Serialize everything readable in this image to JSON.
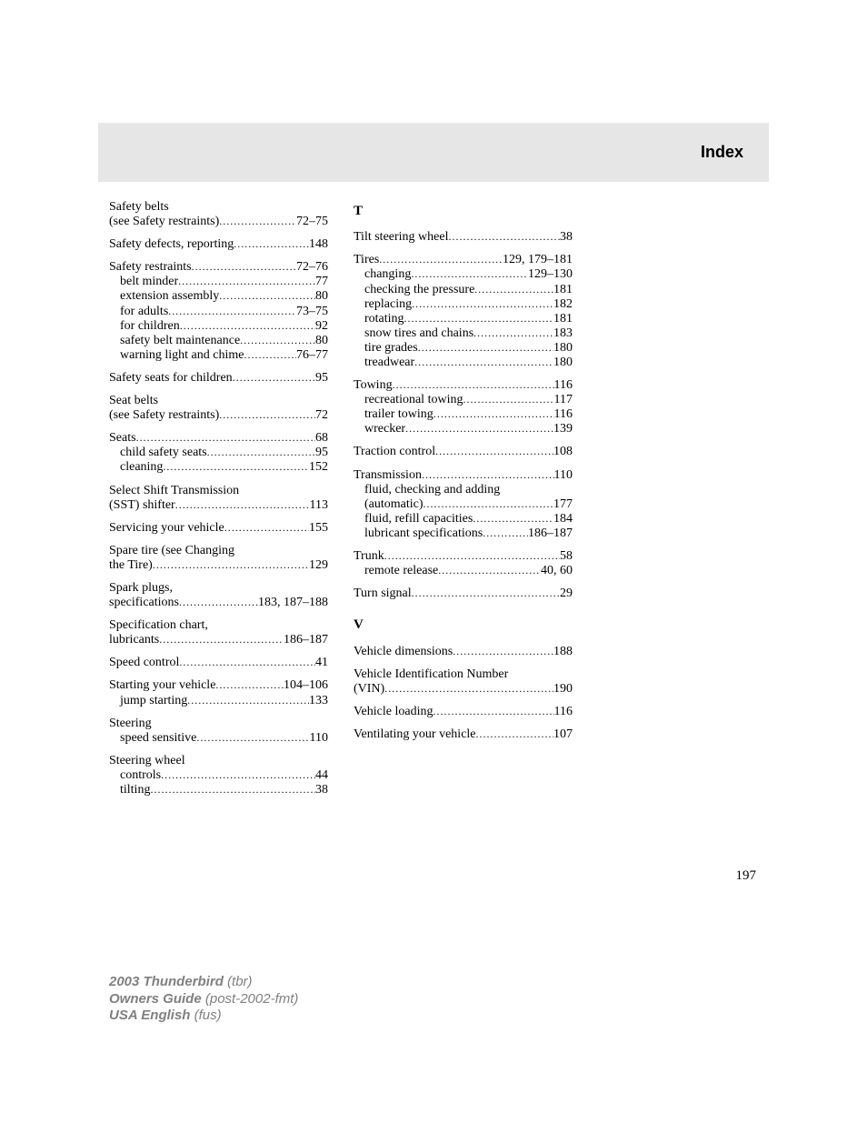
{
  "header": {
    "title": "Index"
  },
  "pageNumber": "197",
  "footer": {
    "line1a": "2003 Thunderbird ",
    "line1b": "(tbr)",
    "line2a": "Owners Guide ",
    "line2b": "(post-2002-fmt)",
    "line3a": "USA English ",
    "line3b": "(fus)"
  },
  "left": [
    {
      "label": "Safety belts",
      "nopage": true,
      "subs": [
        {
          "label": "(see Safety restraints)",
          "pg": "72–75",
          "noindent": true
        }
      ]
    },
    {
      "label": "Safety defects, reporting",
      "pg": "148"
    },
    {
      "label": "Safety restraints",
      "pg": "72–76",
      "subs": [
        {
          "label": "belt minder",
          "pg": "77"
        },
        {
          "label": "extension assembly",
          "pg": "80"
        },
        {
          "label": "for adults",
          "pg": "73–75"
        },
        {
          "label": "for children",
          "pg": "92"
        },
        {
          "label": "safety belt maintenance",
          "pg": "80"
        },
        {
          "label": "warning light and chime",
          "pg": "76–77"
        }
      ]
    },
    {
      "label": "Safety seats for children",
      "pg": "95"
    },
    {
      "label": "Seat belts",
      "nopage": true,
      "subs": [
        {
          "label": "(see Safety restraints)",
          "pg": "72",
          "noindent": true
        }
      ]
    },
    {
      "label": "Seats",
      "pg": "68",
      "subs": [
        {
          "label": "child safety seats",
          "pg": "95"
        },
        {
          "label": "cleaning",
          "pg": "152"
        }
      ]
    },
    {
      "label": "Select Shift Transmission",
      "nopage": true,
      "subs": [
        {
          "label": "(SST) shifter",
          "pg": "113",
          "noindent": true
        }
      ]
    },
    {
      "label": "Servicing your vehicle",
      "pg": "155"
    },
    {
      "label": "Spare tire (see Changing",
      "nopage": true,
      "subs": [
        {
          "label": "the Tire)",
          "pg": "129",
          "noindent": true
        }
      ]
    },
    {
      "label": "Spark plugs,",
      "nopage": true,
      "subs": [
        {
          "label": "specifications",
          "pg": "183, 187–188",
          "noindent": true
        }
      ]
    },
    {
      "label": "Specification chart,",
      "nopage": true,
      "subs": [
        {
          "label": "lubricants",
          "pg": "186–187",
          "noindent": true
        }
      ]
    },
    {
      "label": "Speed control",
      "pg": "41"
    },
    {
      "label": "Starting your vehicle",
      "pg": "104–106",
      "subs": [
        {
          "label": "jump starting",
          "pg": "133"
        }
      ]
    },
    {
      "label": "Steering",
      "nopage": true,
      "subs": [
        {
          "label": "speed sensitive",
          "pg": "110"
        }
      ]
    },
    {
      "label": "Steering wheel",
      "nopage": true,
      "subs": [
        {
          "label": "controls",
          "pg": "44"
        },
        {
          "label": "tilting",
          "pg": "38"
        }
      ]
    }
  ],
  "sectionT": "T",
  "sectionV": "V",
  "rightT": [
    {
      "label": "Tilt steering wheel",
      "pg": "38"
    },
    {
      "label": "Tires",
      "pg": "129, 179–181",
      "subs": [
        {
          "label": "changing",
          "pg": "129–130"
        },
        {
          "label": "checking the pressure",
          "pg": "181"
        },
        {
          "label": "replacing",
          "pg": "182"
        },
        {
          "label": "rotating",
          "pg": "181"
        },
        {
          "label": "snow tires and chains",
          "pg": "183"
        },
        {
          "label": "tire grades",
          "pg": "180"
        },
        {
          "label": "treadwear",
          "pg": "180"
        }
      ]
    },
    {
      "label": "Towing",
      "pg": "116",
      "subs": [
        {
          "label": "recreational towing",
          "pg": "117"
        },
        {
          "label": "trailer towing",
          "pg": "116"
        },
        {
          "label": "wrecker",
          "pg": "139"
        }
      ]
    },
    {
      "label": "Traction control",
      "pg": "108"
    },
    {
      "label": "Transmission",
      "pg": "110",
      "subs": [
        {
          "label": "fluid, checking and adding",
          "nopage": true
        },
        {
          "label": "(automatic)",
          "pg": "177"
        },
        {
          "label": "fluid, refill capacities",
          "pg": "184"
        },
        {
          "label": "lubricant specifications",
          "pg": "186–187"
        }
      ]
    },
    {
      "label": "Trunk",
      "pg": "58",
      "subs": [
        {
          "label": "remote release",
          "pg": "40, 60"
        }
      ]
    },
    {
      "label": "Turn signal",
      "pg": "29"
    }
  ],
  "rightV": [
    {
      "label": "Vehicle dimensions",
      "pg": "188"
    },
    {
      "label": "Vehicle Identification Number",
      "nopage": true,
      "subs": [
        {
          "label": "(VIN)",
          "pg": "190",
          "noindent": true
        }
      ]
    },
    {
      "label": "Vehicle loading",
      "pg": "116"
    },
    {
      "label": "Ventilating your vehicle",
      "pg": "107"
    }
  ]
}
